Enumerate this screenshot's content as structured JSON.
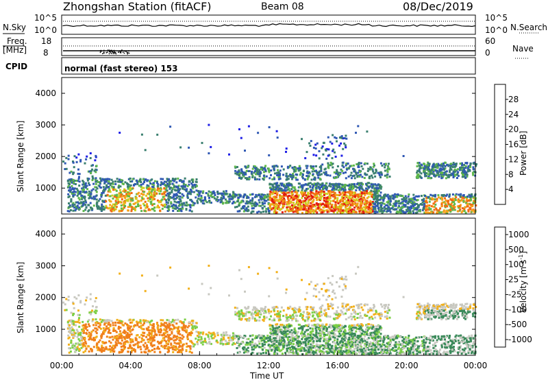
{
  "header": {
    "title": "Zhongshan Station (fitACF)",
    "beam": "Beam 08",
    "date": "08/Dec/2019"
  },
  "top_panels": {
    "nsky_label": "N.Sky",
    "nsky_ticks": [
      "10^5",
      "10^0"
    ],
    "nsearch_label": "N.Search",
    "nsearch_ticks": [
      "10^5",
      "10^0"
    ],
    "freq_label": "Freq.",
    "freq_unit": "[MHz]",
    "freq_ticks": [
      "18",
      "8"
    ],
    "nave_label": "Nave",
    "nave_ticks": [
      "60",
      "0"
    ],
    "cpid_label": "CPID",
    "cpid_text": "normal (fast stereo) 153"
  },
  "chart_data": [
    {
      "type": "heatmap",
      "panel": "power",
      "ylabel": "Slant Range [km]",
      "y_ticks": [
        1000,
        2000,
        3000,
        4000
      ],
      "ylim": [
        180,
        4500
      ],
      "xlim": [
        0,
        24
      ],
      "colorbar_label": "Power [dB]",
      "colorbar_ticks": [
        "4",
        "8",
        "12",
        "16",
        "20",
        "24",
        "28"
      ],
      "colorbar_colors": [
        "#1e1ee6",
        "#2f58b3",
        "#3a7f6f",
        "#5fb84a",
        "#cdd21e",
        "#f6a11a",
        "#f26a12",
        "#e21b10"
      ],
      "note": ""
    },
    {
      "type": "heatmap",
      "panel": "velocity",
      "ylabel": "Slant Range [km]",
      "y_ticks": [
        1000,
        2000,
        3000,
        4000
      ],
      "ylim": [
        180,
        4500
      ],
      "xlim": [
        0,
        24
      ],
      "x_ticks": [
        "00:00",
        "04:00",
        "08:00",
        "12:00",
        "16:00",
        "20:00",
        "00:00"
      ],
      "xlabel": "Time UT",
      "colorbar_label": "Velocity [m s-1]",
      "colorbar_ticks": [
        "1000",
        "500",
        "100",
        "25",
        "-25",
        "-100",
        "-500",
        "-1000"
      ],
      "colorbar_colors": [
        "#1e2fb4",
        "#3a8a5a",
        "#7ccf47",
        "#c8c8c0",
        "#c8c8c0",
        "#f2b01a",
        "#f07f1a",
        "#e32a12"
      ]
    }
  ]
}
